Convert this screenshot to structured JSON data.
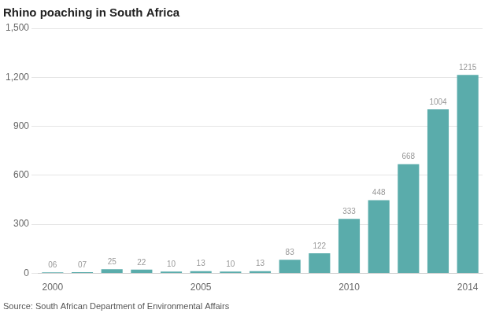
{
  "chart_data": {
    "type": "bar",
    "title": "Rhino poaching in South Africa",
    "annotations": [
      "Source: South African Department of Environmental Affairs"
    ],
    "categories": [
      "2000",
      null,
      null,
      null,
      null,
      "2005",
      null,
      null,
      null,
      null,
      "2010",
      null,
      null,
      null,
      "2014"
    ],
    "values": [
      6,
      7,
      25,
      22,
      10,
      13,
      10,
      13,
      83,
      122,
      333,
      448,
      668,
      1004,
      1215
    ],
    "value_labels": [
      "06",
      "07",
      "25",
      "22",
      "10",
      "13",
      "10",
      "13",
      "83",
      "122",
      "333",
      "448",
      "668",
      "1004",
      "1215"
    ],
    "data_labels": true,
    "color": "#5aacab",
    "ylim": [
      0,
      1500
    ],
    "yticks": [
      0,
      300,
      600,
      900,
      1200,
      1500
    ],
    "grid": true
  }
}
